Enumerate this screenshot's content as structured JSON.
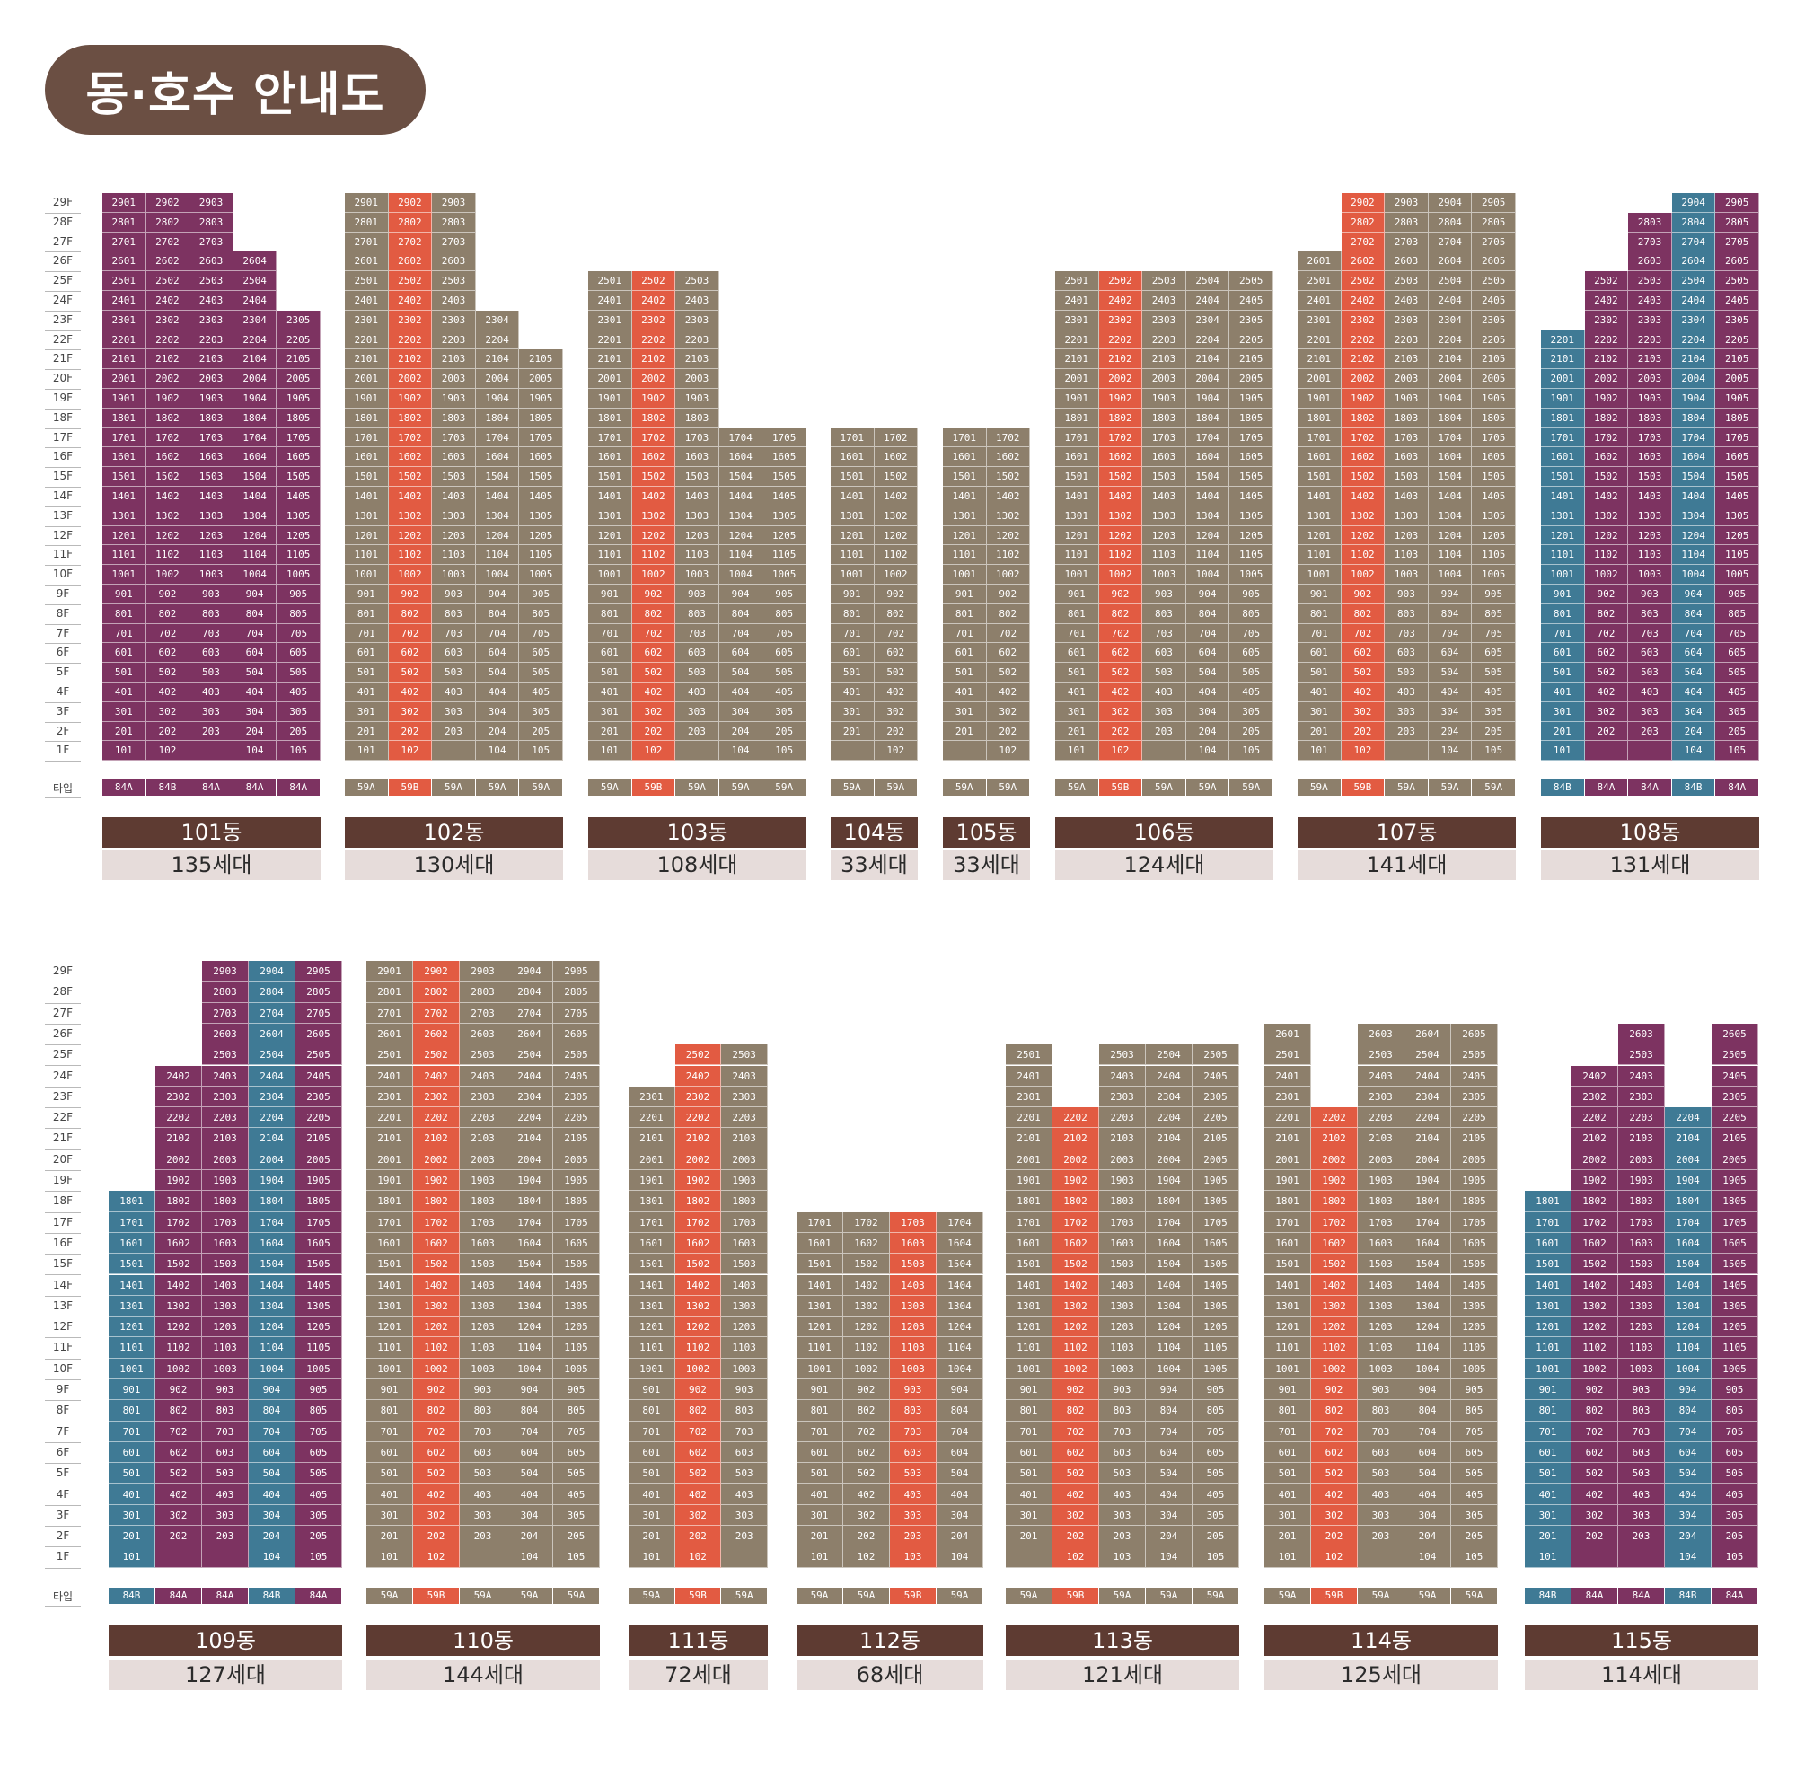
{
  "title": "동·호수 안내도",
  "floors": [
    "29F",
    "28F",
    "27F",
    "26F",
    "25F",
    "24F",
    "23F",
    "22F",
    "21F",
    "20F",
    "19F",
    "18F",
    "17F",
    "16F",
    "15F",
    "14F",
    "13F",
    "12F",
    "11F",
    "10F",
    "9F",
    "8F",
    "7F",
    "6F",
    "5F",
    "4F",
    "3F",
    "2F",
    "1F"
  ],
  "type_label": "타입",
  "colors": {
    "olive": "#8d7f6b",
    "red": "#e25b42",
    "purple": "#7d3361",
    "teal": "#3f7a95",
    "title_bg": "#6b4f43",
    "bar": "#5e3b32",
    "hh_bg": "#e6dcda"
  },
  "buildings": [
    {
      "name": "101동",
      "households": "135세대",
      "types": [
        "84A",
        "84B",
        "84A",
        "84A",
        "84A"
      ],
      "colors": [
        "purple",
        "purple",
        "purple",
        "purple",
        "purple"
      ],
      "tops": [
        29,
        29,
        29,
        26,
        23
      ],
      "missing": [
        [
          2,
          1
        ]
      ],
      "row": 0
    },
    {
      "name": "102동",
      "households": "130세대",
      "types": [
        "59A",
        "59B",
        "59A",
        "59A",
        "59A"
      ],
      "colors": [
        "olive",
        "red",
        "olive",
        "olive",
        "olive"
      ],
      "tops": [
        29,
        29,
        29,
        23,
        21
      ],
      "missing": [
        [
          2,
          1
        ]
      ],
      "row": 0
    },
    {
      "name": "103동",
      "households": "108세대",
      "types": [
        "59A",
        "59B",
        "59A",
        "59A",
        "59A"
      ],
      "colors": [
        "olive",
        "red",
        "olive",
        "olive",
        "olive"
      ],
      "tops": [
        25,
        25,
        25,
        17,
        17
      ],
      "missing": [
        [
          2,
          1
        ]
      ],
      "row": 0
    },
    {
      "name": "104동",
      "households": "33세대",
      "types": [
        "59A",
        "59A"
      ],
      "colors": [
        "olive",
        "olive"
      ],
      "tops": [
        17,
        17
      ],
      "missing": [
        [
          0,
          1
        ]
      ],
      "row": 0
    },
    {
      "name": "105동",
      "households": "33세대",
      "types": [
        "59A",
        "59A"
      ],
      "colors": [
        "olive",
        "olive"
      ],
      "tops": [
        17,
        17
      ],
      "missing": [
        [
          0,
          1
        ]
      ],
      "row": 0
    },
    {
      "name": "106동",
      "households": "124세대",
      "types": [
        "59A",
        "59B",
        "59A",
        "59A",
        "59A"
      ],
      "colors": [
        "olive",
        "red",
        "olive",
        "olive",
        "olive"
      ],
      "tops": [
        25,
        25,
        25,
        25,
        25
      ],
      "missing": [
        [
          2,
          1
        ]
      ],
      "row": 0
    },
    {
      "name": "107동",
      "households": "141세대",
      "types": [
        "59A",
        "59B",
        "59A",
        "59A",
        "59A"
      ],
      "colors": [
        "olive",
        "red",
        "olive",
        "olive",
        "olive"
      ],
      "tops": [
        26,
        29,
        29,
        29,
        29
      ],
      "missing": [
        [
          2,
          1
        ]
      ],
      "row": 0
    },
    {
      "name": "108동",
      "households": "131세대",
      "types": [
        "84B",
        "84A",
        "84A",
        "84B",
        "84A"
      ],
      "colors": [
        "teal",
        "purple",
        "purple",
        "teal",
        "purple"
      ],
      "tops": [
        22,
        25,
        28,
        29,
        29
      ],
      "missing": [
        [
          1,
          1
        ],
        [
          2,
          1
        ]
      ],
      "row": 0
    },
    {
      "name": "109동",
      "households": "127세대",
      "types": [
        "84B",
        "84A",
        "84A",
        "84B",
        "84A"
      ],
      "colors": [
        "teal",
        "purple",
        "purple",
        "teal",
        "purple"
      ],
      "tops": [
        18,
        24,
        29,
        29,
        29
      ],
      "missing": [
        [
          1,
          1
        ],
        [
          2,
          1
        ]
      ],
      "row": 1
    },
    {
      "name": "110동",
      "households": "144세대",
      "types": [
        "59A",
        "59B",
        "59A",
        "59A",
        "59A"
      ],
      "colors": [
        "olive",
        "red",
        "olive",
        "olive",
        "olive"
      ],
      "tops": [
        29,
        29,
        29,
        29,
        29
      ],
      "missing": [
        [
          2,
          1
        ]
      ],
      "row": 1
    },
    {
      "name": "111동",
      "households": "72세대",
      "types": [
        "59A",
        "59B",
        "59A"
      ],
      "colors": [
        "olive",
        "red",
        "olive"
      ],
      "tops": [
        23,
        25,
        25
      ],
      "missing": [
        [
          2,
          1
        ]
      ],
      "row": 1
    },
    {
      "name": "112동",
      "households": "68세대",
      "types": [
        "59A",
        "59A",
        "59B",
        "59A"
      ],
      "colors": [
        "olive",
        "olive",
        "red",
        "olive"
      ],
      "tops": [
        17,
        17,
        17,
        17
      ],
      "missing": [],
      "row": 1
    },
    {
      "name": "113동",
      "households": "121세대",
      "types": [
        "59A",
        "59B",
        "59A",
        "59A",
        "59A"
      ],
      "colors": [
        "olive",
        "red",
        "olive",
        "olive",
        "olive"
      ],
      "tops": [
        25,
        22,
        25,
        25,
        25
      ],
      "missing": [
        [
          0,
          1
        ]
      ],
      "row": 1
    },
    {
      "name": "114동",
      "households": "125세대",
      "types": [
        "59A",
        "59B",
        "59A",
        "59A",
        "59A"
      ],
      "colors": [
        "olive",
        "red",
        "olive",
        "olive",
        "olive"
      ],
      "tops": [
        26,
        22,
        26,
        26,
        26
      ],
      "missing": [
        [
          2,
          1
        ]
      ],
      "row": 1
    },
    {
      "name": "115동",
      "households": "114세대",
      "types": [
        "84B",
        "84A",
        "84A",
        "84B",
        "84A"
      ],
      "colors": [
        "teal",
        "purple",
        "purple",
        "teal",
        "purple"
      ],
      "tops": [
        18,
        24,
        26,
        22,
        26
      ],
      "missing": [
        [
          1,
          1
        ],
        [
          2,
          1
        ]
      ],
      "row": 1
    }
  ]
}
